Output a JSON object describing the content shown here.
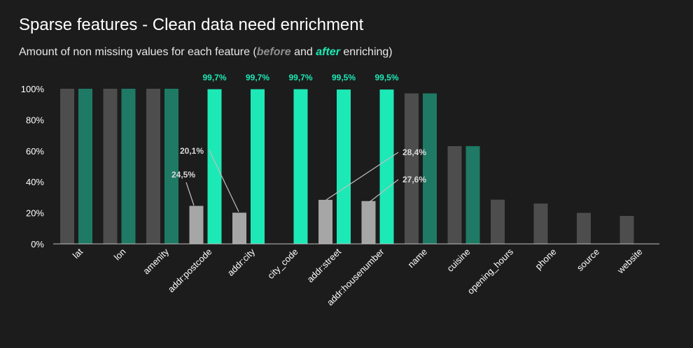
{
  "title": "Sparse features - Clean data need enrichment",
  "subtitle": {
    "prefix": "Amount of non missing values for each feature (",
    "before_word": "before",
    "middle": " and ",
    "after_word": "after",
    "suffix": " enriching)"
  },
  "colors": {
    "before_default": "#4d4d4d",
    "before_highlight": "#a6a6a6",
    "after_default": "#1e7a64",
    "after_highlight": "#1de9b6",
    "axis": "#bfbfbf",
    "leader": "#bfbfbf"
  },
  "chart_data": {
    "type": "bar",
    "title": "Sparse features - Clean data need enrichment",
    "subtitle": "Amount of non missing values for each feature (before and after enriching)",
    "xlabel": "",
    "ylabel": "",
    "ylim": [
      0,
      100
    ],
    "yticks": [
      "0%",
      "20%",
      "40%",
      "60%",
      "80%",
      "100%"
    ],
    "grid": false,
    "categories": [
      "lat",
      "lon",
      "amenity",
      "addr:postcode",
      "addr:city",
      "city_code",
      "addr:street",
      "addr:housenumber",
      "name",
      "cuisine",
      "opening_hours",
      "phone",
      "source",
      "website"
    ],
    "series": [
      {
        "name": "before",
        "values": [
          100,
          100,
          100,
          24.5,
          20.1,
          null,
          28.4,
          27.6,
          97,
          63,
          28.5,
          26,
          20,
          18
        ],
        "highlight": [
          false,
          false,
          false,
          true,
          true,
          false,
          true,
          true,
          false,
          false,
          false,
          false,
          false,
          false
        ]
      },
      {
        "name": "after",
        "values": [
          100,
          100,
          100,
          99.7,
          99.7,
          99.7,
          99.5,
          99.5,
          97,
          63,
          null,
          null,
          null,
          null
        ],
        "highlight": [
          false,
          false,
          false,
          true,
          true,
          true,
          true,
          true,
          false,
          false,
          false,
          false,
          false,
          false
        ]
      }
    ],
    "data_labels": {
      "after": [
        "",
        "",
        "",
        "99,7%",
        "99,7%",
        "99,7%",
        "99,5%",
        "99,5%",
        "",
        "",
        "",
        "",
        "",
        ""
      ],
      "before": [
        "",
        "",
        "",
        "24,5%",
        "20,1%",
        "",
        "28,4%",
        "27,6%",
        "",
        "",
        "",
        "",
        "",
        ""
      ]
    }
  }
}
